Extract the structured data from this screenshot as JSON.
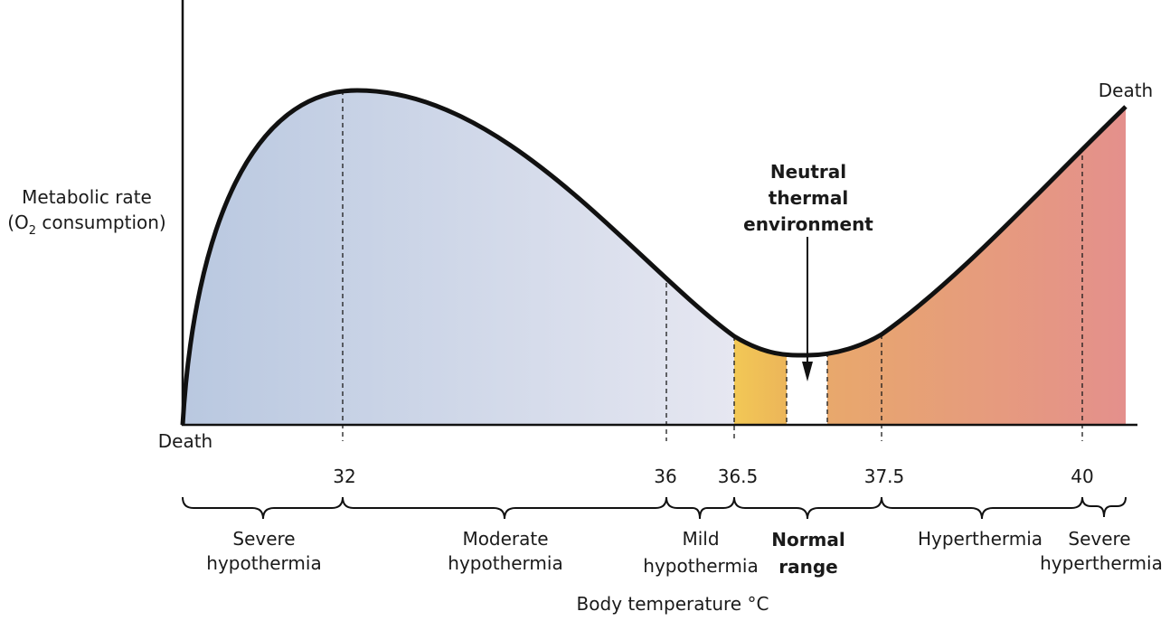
{
  "y_axis_label": {
    "line1": "Metabolic rate",
    "line2_prefix": "(O",
    "line2_sub": "2",
    "line2_suffix": " consumption)"
  },
  "x_axis_label": "Body temperature °C",
  "death_left": "Death",
  "death_right": "Death",
  "annotation": {
    "line1": "Neutral",
    "line2": "thermal",
    "line3": "environment"
  },
  "ticks": [
    "32",
    "36",
    "36.5",
    "37.5",
    "40"
  ],
  "ranges": [
    {
      "line1": "Severe",
      "line2": "hypothermia",
      "bold": false
    },
    {
      "line1": "Moderate",
      "line2": "hypothermia",
      "bold": false
    },
    {
      "line1": "Mild",
      "line2": "hypothermia",
      "bold": false
    },
    {
      "line1": "Normal",
      "line2": "range",
      "bold": true
    },
    {
      "line1": "Hyperthermia",
      "line2": "",
      "bold": false
    },
    {
      "line1": "Severe",
      "line2": "hyperthermia",
      "bold": false
    }
  ],
  "colors": {
    "hypothermia_start": "#b9c8e0",
    "hypothermia_end": "#e6e7f1",
    "normal_band": "#f2c452",
    "hyperthermia_start": "#e8a46a",
    "hyperthermia_end": "#e4908c",
    "neutral_zone": "#ffffff"
  }
}
